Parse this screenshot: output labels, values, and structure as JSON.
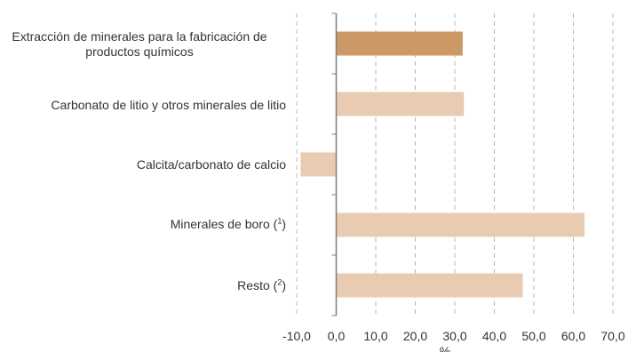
{
  "chart_data": {
    "type": "bar",
    "orientation": "horizontal",
    "categories": [
      "Extracción de minerales para la fabricación de productos químicos",
      "Carbonato de litio y otros minerales de litio",
      "Calcita/carbonato de calcio",
      "Minerales de boro",
      "Resto"
    ],
    "category_notes": [
      "",
      "",
      "",
      "1",
      "2"
    ],
    "values": [
      32.0,
      32.3,
      -9.0,
      62.8,
      47.2
    ],
    "colors": [
      "#cc9966",
      "#e8cbb0",
      "#e8cbb0",
      "#e8cbb0",
      "#e8cbb0"
    ],
    "xlabel": "%",
    "xlim": [
      -10,
      70
    ],
    "xticks": [
      "-10,0",
      "0,0",
      "10,0",
      "20,0",
      "30,0",
      "40,0",
      "50,0",
      "60,0",
      "70,0"
    ],
    "grid": "vertical dashed"
  }
}
